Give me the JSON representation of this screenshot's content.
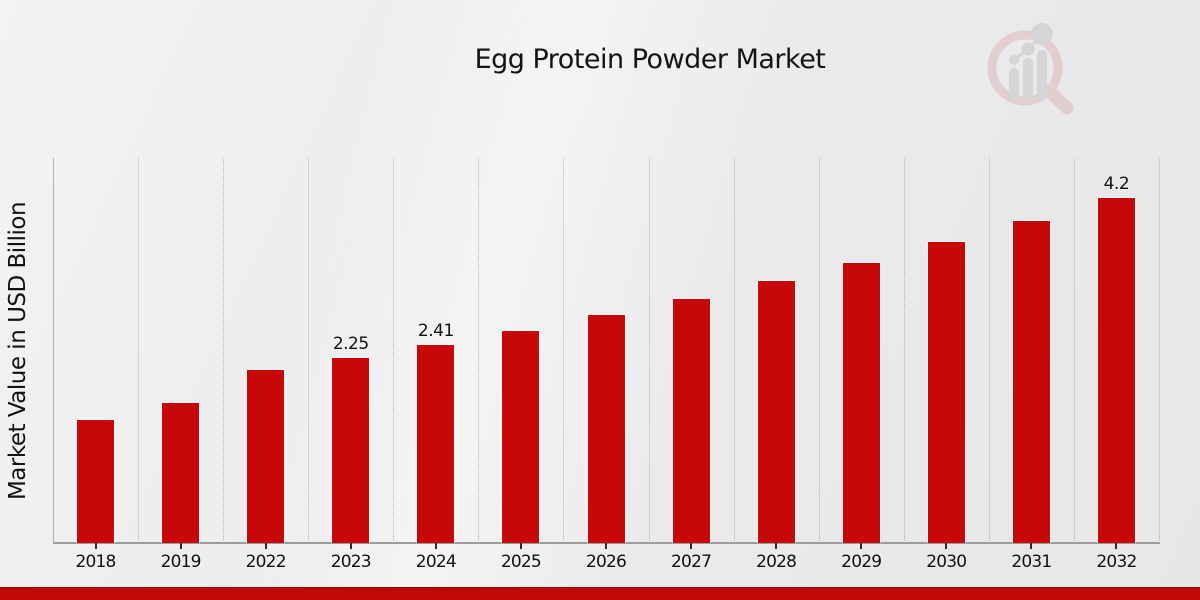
{
  "header": {
    "title": "Egg Protein Powder Market"
  },
  "chart_data": {
    "type": "bar",
    "title": "Egg Protein Powder Market",
    "xlabel": "",
    "ylabel": "Market Value in USD Billion",
    "categories": [
      "2018",
      "2019",
      "2022",
      "2023",
      "2024",
      "2025",
      "2026",
      "2027",
      "2028",
      "2029",
      "2030",
      "2031",
      "2032"
    ],
    "values": [
      1.5,
      1.7,
      2.1,
      2.25,
      2.41,
      2.58,
      2.77,
      2.97,
      3.18,
      3.41,
      3.66,
      3.92,
      4.2
    ],
    "data_labels": {
      "2023": "2.25",
      "2024": "2.41",
      "2032": "4.2"
    },
    "ylim": [
      0,
      4.68
    ],
    "grid": "vertical-dotted",
    "legend_position": "none",
    "bar_color": "#C80808",
    "text_color": "#141414"
  },
  "footer": {
    "accent_color": "#C20707"
  },
  "watermark": {
    "icon": "magnifier-bar-chart",
    "ring_color": "#DCB5B5",
    "bars_color": "#C2C2C6"
  }
}
